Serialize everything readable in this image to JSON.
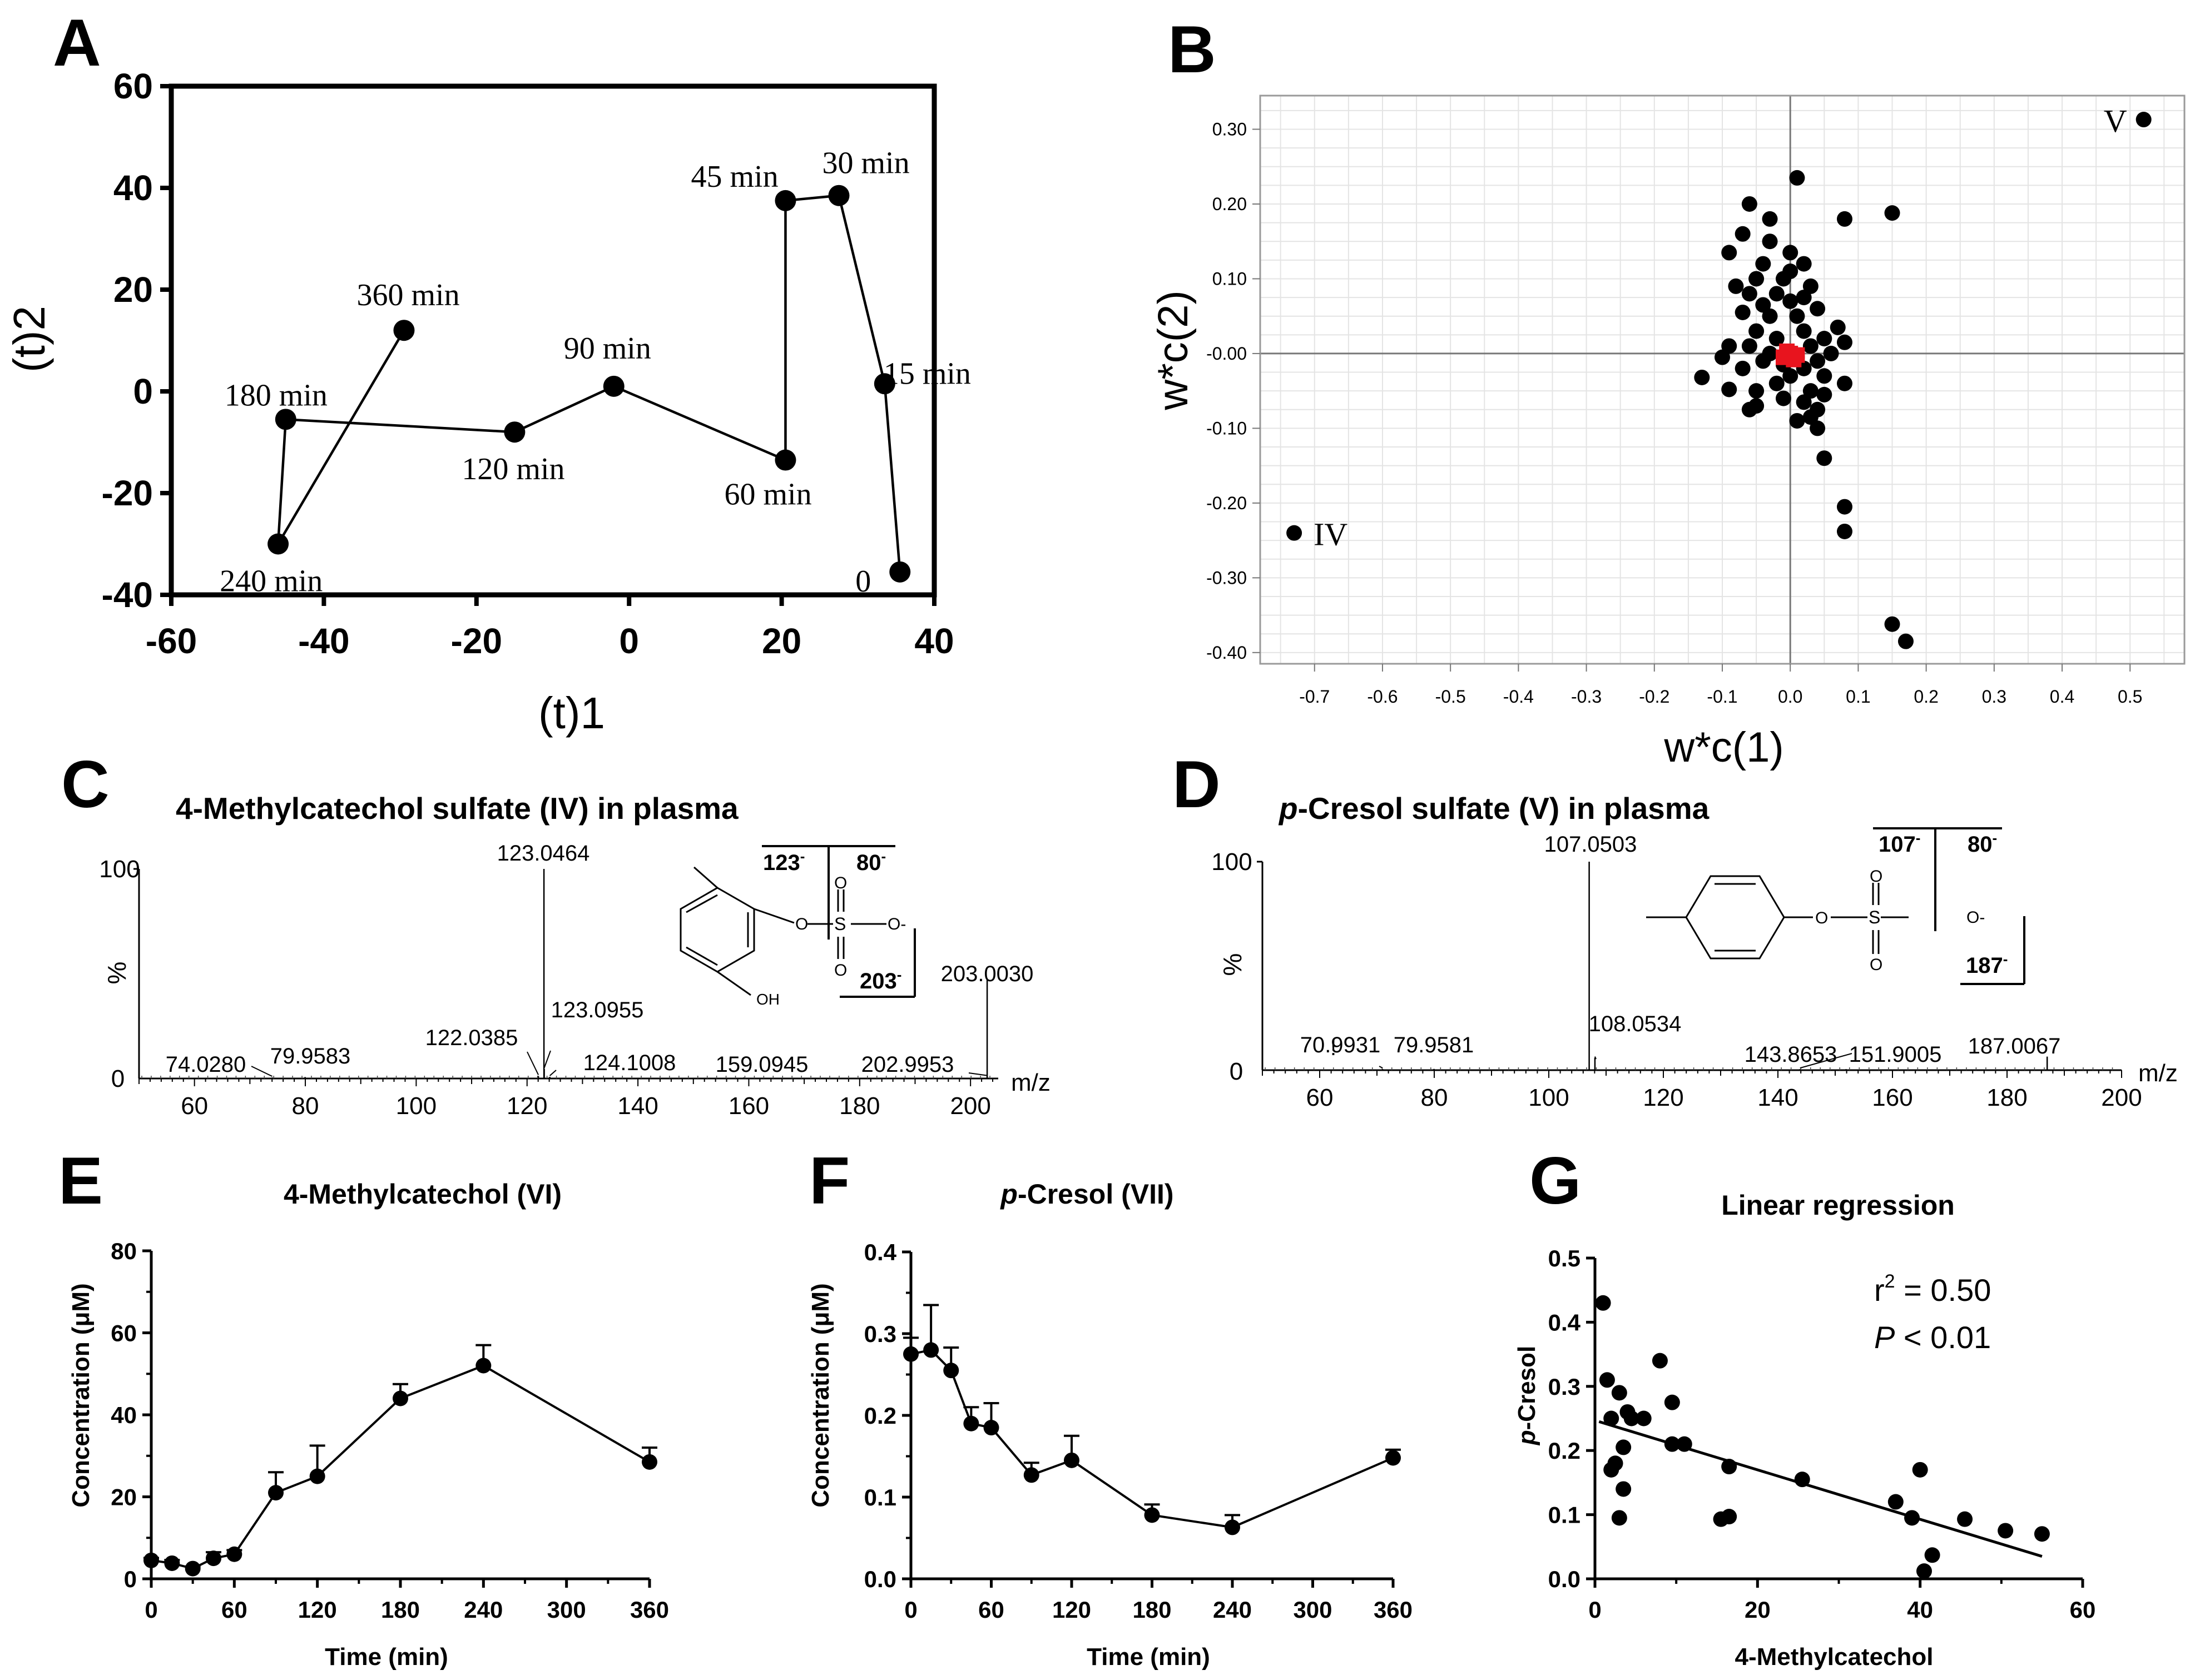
{
  "panels": [
    {
      "letter": "A",
      "type": "scatter-line",
      "xlabel": "(t)1",
      "ylabel": "(t)2",
      "xlim": [
        -60,
        40
      ],
      "ylim": [
        -40,
        60
      ],
      "xticks": [
        -60,
        -40,
        -20,
        0,
        20,
        40
      ],
      "yticks": [
        -40,
        -20,
        0,
        20,
        40,
        60
      ],
      "points": [
        {
          "label": "0",
          "x": 35.5,
          "y": -35.5
        },
        {
          "label": "15 min",
          "x": 33.5,
          "y": 1.5
        },
        {
          "label": "30 min",
          "x": 27.5,
          "y": 38.5
        },
        {
          "label": "45 min",
          "x": 20.5,
          "y": 37.5
        },
        {
          "label": "60 min",
          "x": 20.5,
          "y": -13.5
        },
        {
          "label": "90 min",
          "x": -2,
          "y": 1
        },
        {
          "label": "120 min",
          "x": -15,
          "y": -8
        },
        {
          "label": "180 min",
          "x": -45,
          "y": -5.5
        },
        {
          "label": "240 min",
          "x": -46,
          "y": -30
        },
        {
          "label": "360 min",
          "x": -29.5,
          "y": 12
        }
      ]
    },
    {
      "letter": "B",
      "type": "scatter",
      "xlabel": "w*c(1)",
      "ylabel": "w*c(2)",
      "xlim": [
        -0.78,
        0.58
      ],
      "ylim": [
        -0.415,
        0.345
      ],
      "xticks": [
        "-0.7",
        "-0.6",
        "-0.5",
        "-0.4",
        "-0.3",
        "-0.2",
        "-0.1",
        "0.0",
        "0.1",
        "0.2",
        "0.3",
        "0.4",
        "0.5"
      ],
      "yticks": [
        "0.30",
        "0.20",
        "0.10",
        "-0.00",
        "-0.10",
        "-0.20",
        "-0.30",
        "-0.40"
      ],
      "labeled_points": [
        {
          "label": "V",
          "x": 0.52,
          "y": 0.313
        },
        {
          "label": "IV",
          "x": -0.73,
          "y": -0.24
        }
      ],
      "points": [
        [
          0.01,
          0.235
        ],
        [
          -0.06,
          0.2
        ],
        [
          0.15,
          0.188
        ],
        [
          0.08,
          0.18
        ],
        [
          -0.03,
          0.18
        ],
        [
          -0.07,
          0.16
        ],
        [
          -0.03,
          0.15
        ],
        [
          0.0,
          0.135
        ],
        [
          -0.09,
          0.135
        ],
        [
          0.02,
          0.12
        ],
        [
          -0.04,
          0.12
        ],
        [
          0.0,
          0.11
        ],
        [
          -0.05,
          0.1
        ],
        [
          -0.01,
          0.1
        ],
        [
          0.03,
          0.09
        ],
        [
          -0.08,
          0.09
        ],
        [
          -0.06,
          0.08
        ],
        [
          -0.02,
          0.08
        ],
        [
          0.02,
          0.075
        ],
        [
          0.0,
          0.07
        ],
        [
          -0.04,
          0.065
        ],
        [
          0.04,
          0.06
        ],
        [
          -0.07,
          0.055
        ],
        [
          -0.03,
          0.05
        ],
        [
          0.01,
          0.05
        ],
        [
          0.07,
          0.035
        ],
        [
          -0.05,
          0.03
        ],
        [
          0.02,
          0.03
        ],
        [
          -0.02,
          0.02
        ],
        [
          0.05,
          0.02
        ],
        [
          0.08,
          0.015
        ],
        [
          -0.09,
          0.01
        ],
        [
          -0.06,
          0.01
        ],
        [
          0.03,
          0.01
        ],
        [
          -0.03,
          0.0
        ],
        [
          0.06,
          0.0
        ],
        [
          -0.1,
          -0.005
        ],
        [
          0.01,
          -0.005
        ],
        [
          -0.04,
          -0.01
        ],
        [
          0.04,
          -0.01
        ],
        [
          -0.01,
          -0.015
        ],
        [
          0.02,
          -0.02
        ],
        [
          -0.07,
          -0.02
        ],
        [
          -0.13,
          -0.032
        ],
        [
          0.0,
          -0.03
        ],
        [
          0.05,
          -0.03
        ],
        [
          -0.02,
          -0.04
        ],
        [
          0.08,
          -0.04
        ],
        [
          -0.09,
          -0.048
        ],
        [
          0.03,
          -0.05
        ],
        [
          -0.05,
          -0.05
        ],
        [
          0.05,
          -0.055
        ],
        [
          -0.01,
          -0.06
        ],
        [
          0.02,
          -0.065
        ],
        [
          -0.05,
          -0.07
        ],
        [
          0.04,
          -0.075
        ],
        [
          -0.06,
          -0.075
        ],
        [
          0.03,
          -0.085
        ],
        [
          0.01,
          -0.09
        ],
        [
          0.04,
          -0.1
        ],
        [
          0.05,
          -0.14
        ],
        [
          0.08,
          -0.205
        ],
        [
          0.08,
          -0.238
        ],
        [
          0.15,
          -0.362
        ],
        [
          0.17,
          -0.385
        ]
      ],
      "red_points": [
        [
          -0.01,
          -0.005
        ],
        [
          0.0,
          0.0
        ],
        [
          0.01,
          -0.002
        ],
        [
          -0.005,
          0.003
        ],
        [
          0.005,
          -0.008
        ]
      ]
    },
    {
      "letter": "C",
      "type": "ms-spectrum",
      "title": "4-Methylcatechol sulfate (IV)  in plasma",
      "xlim": [
        50,
        205
      ],
      "xticks": [
        60,
        80,
        100,
        120,
        140,
        160,
        180,
        200
      ],
      "ylabels": {
        "top": "100",
        "bottom": "0",
        "axis": "%"
      },
      "xunit": "m/z",
      "peaks": [
        {
          "mz": 74.028,
          "h": 0.5,
          "label": "74.0280"
        },
        {
          "mz": 79.9583,
          "h": 0.7,
          "label": "79.9583"
        },
        {
          "mz": 122.0385,
          "h": 1.2,
          "label": "122.0385"
        },
        {
          "mz": 123.0464,
          "h": 100,
          "label": "123.0464"
        },
        {
          "mz": 123.0955,
          "h": 4.5,
          "label": "123.0955"
        },
        {
          "mz": 124.1008,
          "h": 0.8,
          "label": "124.1008"
        },
        {
          "mz": 159.0945,
          "h": 0.5,
          "label": "159.0945"
        },
        {
          "mz": 202.9953,
          "h": 0.9,
          "label": "202.9953"
        },
        {
          "mz": 203.003,
          "h": 47,
          "label": "203.0030"
        }
      ],
      "fragments": {
        "f1": "123",
        "f2": "80",
        "f3": "203",
        "sup": "-",
        "oh": "OH",
        "o": "O",
        "s": "S",
        "ominus": "O-"
      }
    },
    {
      "letter": "D",
      "type": "ms-spectrum",
      "title_italic": "p",
      "title_rest": "-Cresol sulfate (V) in plasma",
      "xlim": [
        50,
        200
      ],
      "xticks": [
        60,
        80,
        100,
        120,
        140,
        160,
        180,
        200
      ],
      "ylabels": {
        "top": "100",
        "bottom": "0",
        "axis": "%"
      },
      "xunit": "m/z",
      "exclaim": "!",
      "peaks": [
        {
          "mz": 70.9931,
          "h": 0.5,
          "label": "70.9931"
        },
        {
          "mz": 79.9581,
          "h": 0.6,
          "label": "79.9581"
        },
        {
          "mz": 107.0503,
          "h": 100,
          "label": "107.0503"
        },
        {
          "mz": 108.0534,
          "h": 6,
          "label": "108.0534"
        },
        {
          "mz": 143.8653,
          "h": 0.5,
          "label": "143.8653"
        },
        {
          "mz": 151.9005,
          "h": 0.5,
          "label": "151.9005"
        },
        {
          "mz": 187.0067,
          "h": 6.5,
          "label": "187.0067"
        }
      ],
      "fragments": {
        "f1": "107",
        "f2": "80",
        "f3": "187",
        "sup": "-",
        "o": "O",
        "s": "S",
        "ominus": "O-"
      }
    },
    {
      "letter": "E",
      "type": "line",
      "title": "4-Methylcatechol (VI)",
      "xlabel": "Time (min)",
      "ylabel": "Concentration (μM)",
      "xlim": [
        0,
        360
      ],
      "ylim": [
        0,
        80
      ],
      "xticks": [
        0,
        60,
        120,
        180,
        240,
        300,
        360
      ],
      "yticks": [
        0,
        20,
        40,
        60,
        80
      ],
      "x": [
        0,
        15,
        30,
        45,
        60,
        90,
        120,
        180,
        240,
        360
      ],
      "y": [
        4.5,
        3.8,
        2.5,
        5.0,
        6.0,
        21.0,
        25.0,
        44.0,
        52.0,
        28.5
      ],
      "err": [
        0.6,
        0.8,
        0.5,
        1.5,
        1.0,
        5.0,
        7.5,
        3.5,
        5.0,
        3.5
      ]
    },
    {
      "letter": "F",
      "type": "line",
      "title_italic": "p",
      "title_rest": "-Cresol (VII)",
      "xlabel": "Time (min)",
      "ylabel": "Concentration (μM)",
      "xlim": [
        0,
        360
      ],
      "ylim": [
        0,
        0.4
      ],
      "xticks": [
        0,
        60,
        120,
        180,
        240,
        300,
        360
      ],
      "yticks": [
        "0.0",
        "0.1",
        "0.2",
        "0.3",
        "0.4"
      ],
      "x": [
        0,
        15,
        30,
        45,
        60,
        90,
        120,
        180,
        240,
        360
      ],
      "y": [
        0.275,
        0.28,
        0.255,
        0.19,
        0.185,
        0.127,
        0.145,
        0.078,
        0.063,
        0.148
      ],
      "err": [
        0.02,
        0.055,
        0.028,
        0.02,
        0.03,
        0.015,
        0.03,
        0.013,
        0.015,
        0.01
      ]
    },
    {
      "letter": "G",
      "type": "scatter",
      "title": "Linear regression",
      "xlabel": "4-Methylcatechol",
      "ylabel_italic": "p",
      "ylabel_rest": "-Cresol",
      "xlim": [
        0,
        60
      ],
      "ylim": [
        0,
        0.5
      ],
      "xticks": [
        0,
        20,
        40,
        60
      ],
      "yticks": [
        "0.0",
        "0.1",
        "0.2",
        "0.3",
        "0.4",
        "0.5"
      ],
      "r2_prefix": "r",
      "r2_sup": "2",
      "r2_rest": " = 0.50",
      "p_italic": "P",
      "p_rest": " < 0.01",
      "regression": {
        "x": [
          0.5,
          55
        ],
        "y": [
          0.245,
          0.035
        ]
      },
      "points": [
        [
          1,
          0.43
        ],
        [
          1.5,
          0.31
        ],
        [
          2,
          0.17
        ],
        [
          2,
          0.25
        ],
        [
          2.5,
          0.18
        ],
        [
          3,
          0.095
        ],
        [
          3,
          0.29
        ],
        [
          3.5,
          0.205
        ],
        [
          3.5,
          0.14
        ],
        [
          4,
          0.26
        ],
        [
          4.5,
          0.25
        ],
        [
          6,
          0.25
        ],
        [
          8,
          0.34
        ],
        [
          9.5,
          0.275
        ],
        [
          9.5,
          0.21
        ],
        [
          11,
          0.21
        ],
        [
          15.5,
          0.093
        ],
        [
          16.5,
          0.097
        ],
        [
          16.5,
          0.175
        ],
        [
          25.5,
          0.155
        ],
        [
          37,
          0.12
        ],
        [
          39,
          0.095
        ],
        [
          40,
          0.17
        ],
        [
          40.5,
          0.012
        ],
        [
          41.5,
          0.037
        ],
        [
          45.5,
          0.093
        ],
        [
          50.5,
          0.075
        ],
        [
          55,
          0.07
        ]
      ]
    }
  ]
}
